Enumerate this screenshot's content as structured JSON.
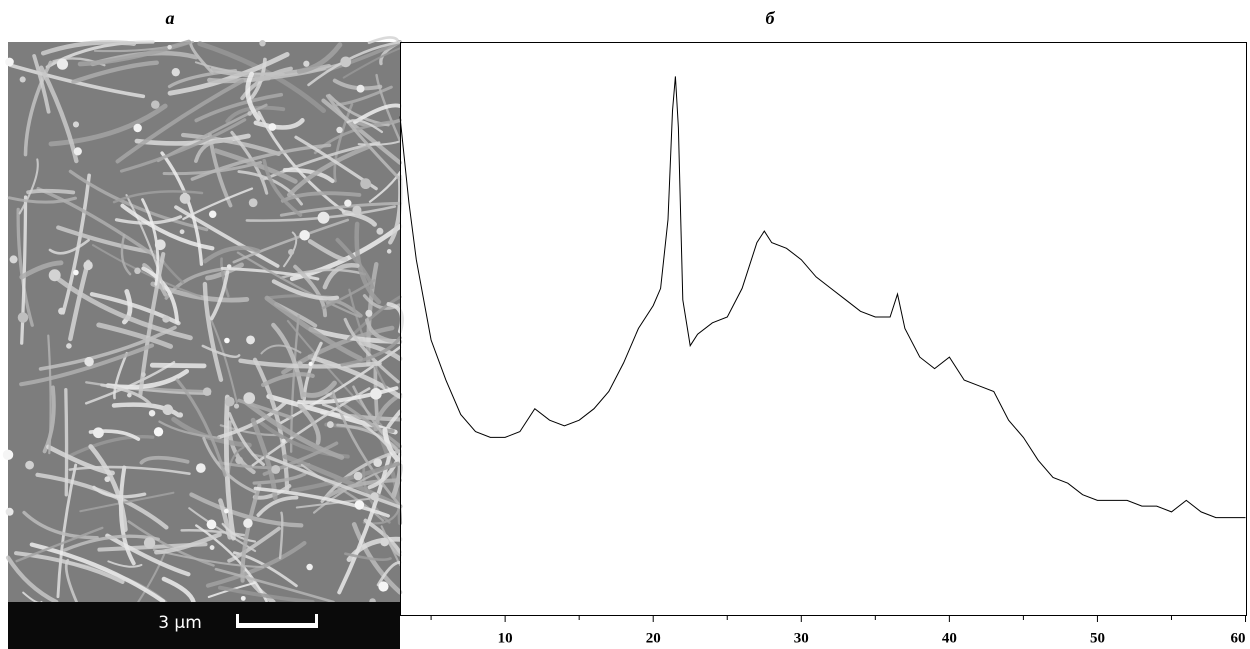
{
  "image_panel": {
    "label": "а",
    "scale_label": "3 μm"
  },
  "chart_data": {
    "type": "line",
    "panel_label": "б",
    "x": [
      2.9,
      3.5,
      4,
      5,
      6,
      7,
      8,
      9,
      10,
      11,
      12,
      13,
      14,
      15,
      16,
      17,
      18,
      19,
      20,
      20.5,
      21,
      21.3,
      21.5,
      21.7,
      22,
      22.5,
      23,
      24,
      25,
      26,
      27,
      27.5,
      28,
      29,
      30,
      31,
      32,
      33,
      34,
      35,
      36,
      36.5,
      37,
      38,
      39,
      40,
      41,
      42,
      43,
      44,
      45,
      46,
      47,
      48,
      49,
      50,
      51,
      52,
      53,
      54,
      55,
      56,
      57,
      58,
      59,
      60
    ],
    "series": [
      {
        "color": "#000000",
        "values": [
          87,
          72,
          62,
          48,
          41,
          35,
          32,
          31,
          31,
          32,
          36,
          34,
          33,
          34,
          36,
          39,
          44,
          50,
          54,
          57,
          69,
          88,
          94,
          85,
          55,
          47,
          49,
          51,
          52,
          57,
          65,
          67,
          65,
          64,
          62,
          59,
          57,
          55,
          53,
          52,
          52,
          56,
          50,
          45,
          43,
          45,
          41,
          40,
          39,
          34,
          31,
          27,
          24,
          23,
          21,
          20,
          20,
          20,
          19,
          19,
          18,
          20,
          18,
          17,
          17,
          17
        ]
      }
    ],
    "xlim": [
      2.9,
      60.1
    ],
    "ylim": [
      0,
      100
    ],
    "xticks": [
      10,
      20,
      30,
      40,
      50,
      60
    ],
    "xminor_ticks": [
      5,
      15,
      25,
      35,
      45,
      55
    ]
  }
}
